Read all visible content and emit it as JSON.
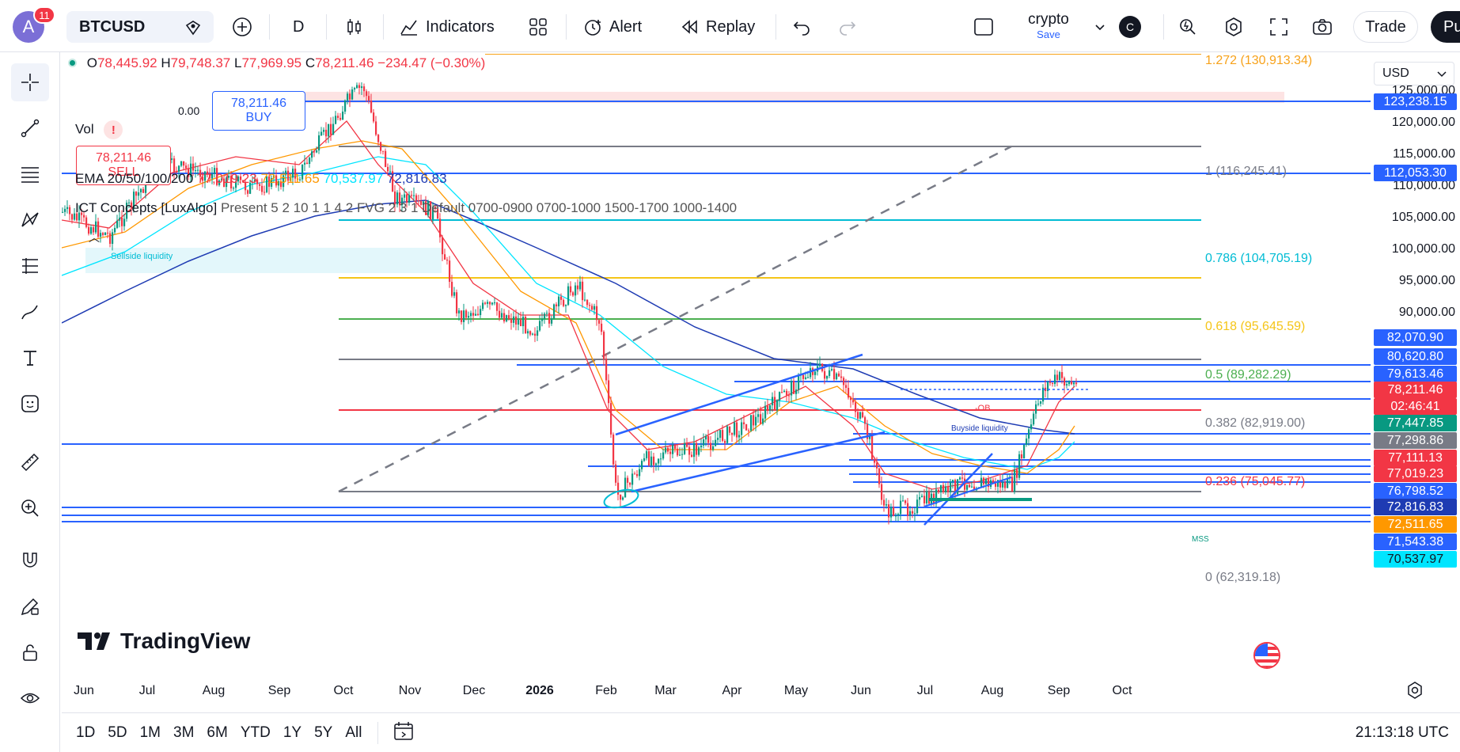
{
  "topbar": {
    "avatar_letter": "A",
    "avatar_badge": "11",
    "symbol": "BTCUSD",
    "interval": "D",
    "indicators_label": "Indicators",
    "alert_label": "Alert",
    "replay_label": "Replay",
    "layout_name": "crypto",
    "layout_save": "Save",
    "layout_initial": "C",
    "trade_label": "Trade",
    "publish_label": "Pu"
  },
  "legend": {
    "ohlc": {
      "o_label": "O",
      "o": "78,445.92",
      "h_label": "H",
      "h": "79,748.37",
      "l_label": "L",
      "l": "77,969.95",
      "c_label": "C",
      "c": "78,211.46",
      "change": "−234.47 (−0.30%)"
    },
    "sell_price": "78,211.46",
    "sell_label": "SELL",
    "spread": "0.00",
    "buy_price": "78,211.46",
    "buy_label": "BUY",
    "vol_label": "Vol",
    "ema_label": "EMA 20/50/100/200",
    "ema_values": [
      "77,019.23",
      "72,511.65",
      "70,537.97",
      "72,816.83"
    ],
    "ict_label": "ICT Concepts [LuxAlgo]",
    "ict_params": "Present 5 2 10 1 1 4 2 FVG 2 3 1 Default 0700-0900 0700-1000 1500-1700 1000-1400",
    "sellside_label": "Sellside liquidity",
    "ob_label": "-OB",
    "buyside_label": "Buyside liquidity",
    "mss_label": "MSS",
    "brand": "TradingView"
  },
  "fib_levels": [
    {
      "label": "1.272 (130,913.34)",
      "color": "#f7a21b"
    },
    {
      "label": "1 (116,245.41)",
      "color": "#787b86"
    },
    {
      "label": "0.786 (104,705.19)",
      "color": "#00bcd4"
    },
    {
      "label": "0.618 (95,645.59)",
      "color": "#f5c518"
    },
    {
      "label": "0.5 (89,282.29)",
      "color": "#4caf50"
    },
    {
      "label": "0.382 (82,919.00)",
      "color": "#787b86"
    },
    {
      "label": "0.236 (75,045.77)",
      "color": "#f23645"
    },
    {
      "label": "0 (62,319.18)",
      "color": "#787b86"
    }
  ],
  "price_axis": {
    "currency": "USD",
    "ticks": [
      "125,000.00",
      "120,000.00",
      "115,000.00",
      "110,000.00",
      "105,000.00",
      "100,000.00",
      "95,000.00",
      "90,000.00"
    ],
    "tags": [
      {
        "value": "123,238.15",
        "color": "#2962ff"
      },
      {
        "value": "112,053.30",
        "color": "#2962ff"
      },
      {
        "value": "82,070.90",
        "color": "#2962ff"
      },
      {
        "value": "80,620.80",
        "color": "#2962ff"
      },
      {
        "value": "79,613.46",
        "color": "#2962ff"
      },
      {
        "value": "78,211.46",
        "color": "#f23645"
      },
      {
        "value": "02:46:41",
        "color": "#f23645"
      },
      {
        "value": "77,447.85",
        "color": "#089981"
      },
      {
        "value": "77,298.86",
        "color": "#787b86"
      },
      {
        "value": "77,111.13",
        "color": "#f23645"
      },
      {
        "value": "77,019.23",
        "color": "#f23645"
      },
      {
        "value": "76,798.52",
        "color": "#2962ff"
      },
      {
        "value": "72,816.83",
        "color": "#1e3bb3"
      },
      {
        "value": "72,511.65",
        "color": "#ff9800"
      },
      {
        "value": "71,543.38",
        "color": "#2962ff"
      },
      {
        "value": "70,537.97",
        "color": "#00e5ff"
      }
    ]
  },
  "time_axis": [
    "Jun",
    "Jul",
    "Aug",
    "Sep",
    "Oct",
    "Nov",
    "Dec",
    "2026",
    "Feb",
    "Mar",
    "Apr",
    "May",
    "Jun",
    "Jul",
    "Aug",
    "Sep",
    "Oct"
  ],
  "bottombar": {
    "ranges": [
      "1D",
      "5D",
      "1M",
      "3M",
      "6M",
      "YTD",
      "1Y",
      "5Y",
      "All"
    ],
    "clock": "21:13:18 UTC"
  }
}
